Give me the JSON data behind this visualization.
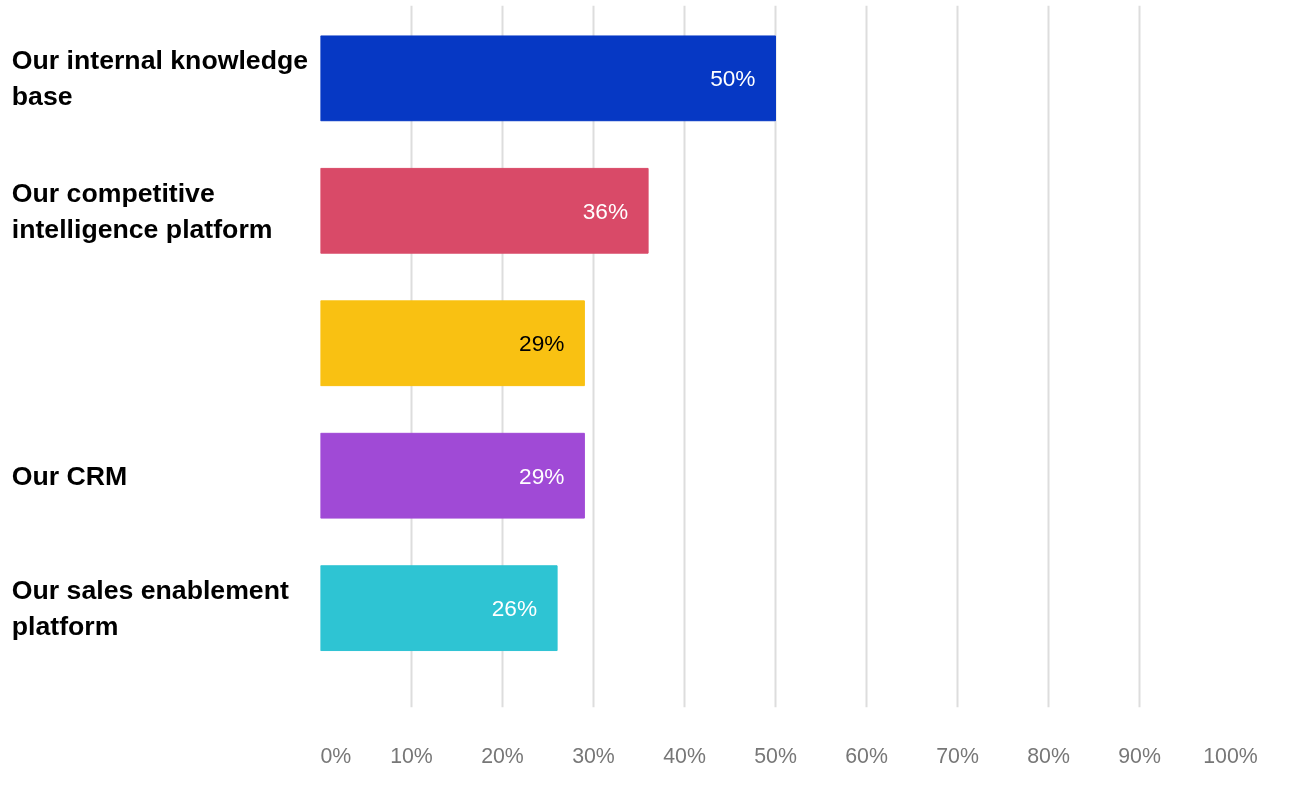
{
  "chart_data": {
    "type": "bar",
    "orientation": "horizontal",
    "categories": [
      "Our internal knowledge base",
      "Our competitive intelligence platform",
      null,
      "Our CRM",
      "Our sales enablement platform"
    ],
    "values": [
      50,
      36,
      29,
      29,
      26
    ],
    "colors": [
      "#0638c4",
      "#d94a68",
      "#f9c112",
      "#a04ad6",
      "#2ec4d3"
    ],
    "value_labels": [
      "50%",
      "36%",
      "29%",
      "29%",
      "26%"
    ],
    "xlim": [
      0,
      100
    ],
    "xticks": [
      {
        "value": 0,
        "label": "0%"
      },
      {
        "value": 10,
        "label": "10%"
      },
      {
        "value": 20,
        "label": "20%"
      },
      {
        "value": 30,
        "label": "30%"
      },
      {
        "value": 40,
        "label": "40%"
      },
      {
        "value": 50,
        "label": "50%"
      },
      {
        "value": 60,
        "label": "60%"
      },
      {
        "value": 70,
        "label": "70%"
      },
      {
        "value": 80,
        "label": "80%"
      },
      {
        "value": 90,
        "label": "90%"
      },
      {
        "value": 100,
        "label": "100%"
      }
    ],
    "grid": "x"
  }
}
